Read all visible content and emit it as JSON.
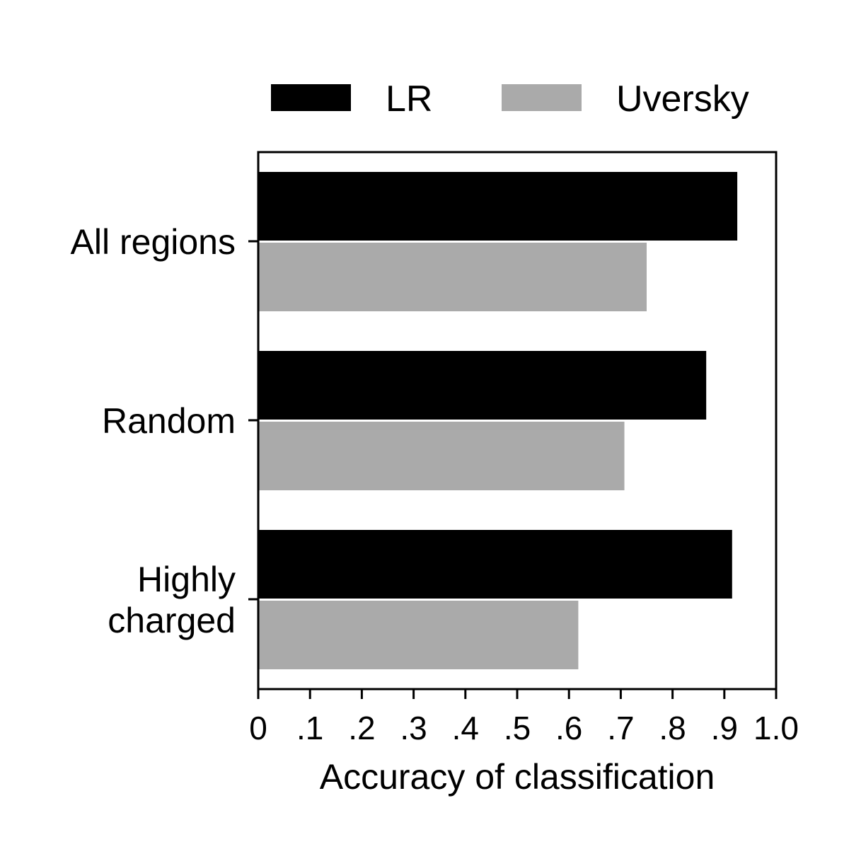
{
  "chart_data": {
    "type": "bar",
    "orientation": "horizontal",
    "categories": [
      [
        "All regions"
      ],
      [
        "Highly",
        "charged"
      ],
      [
        "Random"
      ]
    ],
    "category_order_top_to_bottom": [
      0,
      2,
      1
    ],
    "series": [
      {
        "name": "LR",
        "color": "#000000",
        "values": [
          0.925,
          0.915,
          0.865
        ]
      },
      {
        "name": "Uversky",
        "color": "#aaaaaa",
        "values": [
          0.75,
          0.618,
          0.707
        ]
      }
    ],
    "xlabel": "Accuracy of classification",
    "ylabel": "",
    "xlim": [
      0,
      1.0
    ],
    "xticks": [
      0,
      0.1,
      0.2,
      0.3,
      0.4,
      0.5,
      0.6,
      0.7,
      0.8,
      0.9,
      1.0
    ],
    "xtick_labels": [
      "0",
      ".1",
      ".2",
      ".3",
      ".4",
      ".5",
      ".6",
      ".7",
      ".8",
      ".9",
      "1.0"
    ],
    "grid": false,
    "legend_position": "top"
  }
}
